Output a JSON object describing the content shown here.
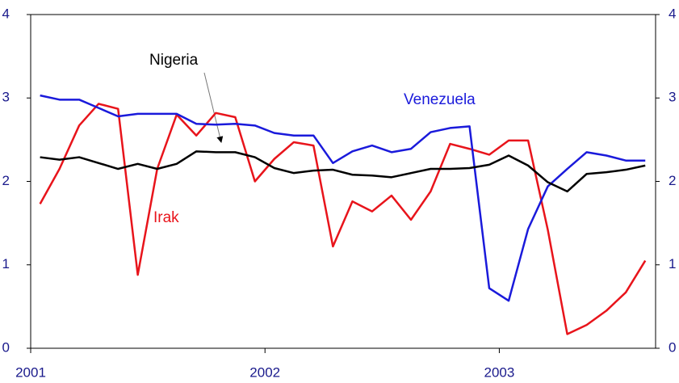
{
  "chart_data": {
    "type": "line",
    "x": [
      2001.04,
      2001.123,
      2001.207,
      2001.29,
      2001.373,
      2001.457,
      2001.54,
      2001.623,
      2001.707,
      2001.79,
      2001.873,
      2001.957,
      2002.04,
      2002.123,
      2002.207,
      2002.29,
      2002.373,
      2002.457,
      2002.54,
      2002.623,
      2002.707,
      2002.79,
      2002.873,
      2002.957,
      2003.04,
      2003.123,
      2003.207,
      2003.29,
      2003.373,
      2003.457,
      2003.54,
      2003.623
    ],
    "series": [
      {
        "name": "Irak",
        "color": "#e8141b",
        "values": [
          1.73,
          2.15,
          2.67,
          2.93,
          2.87,
          0.88,
          2.15,
          2.8,
          2.55,
          2.82,
          2.77,
          2.0,
          2.27,
          2.47,
          2.43,
          1.22,
          1.76,
          1.64,
          1.83,
          1.54,
          1.88,
          2.45,
          2.39,
          2.32,
          2.49,
          2.49,
          1.42,
          0.17,
          0.28,
          0.45,
          0.67,
          1.05
        ]
      },
      {
        "name": "Venezuela",
        "color": "#1a1adb",
        "values": [
          3.03,
          2.98,
          2.98,
          2.88,
          2.78,
          2.81,
          2.81,
          2.81,
          2.69,
          2.68,
          2.69,
          2.67,
          2.58,
          2.55,
          2.55,
          2.22,
          2.36,
          2.43,
          2.35,
          2.39,
          2.59,
          2.64,
          2.66,
          0.72,
          0.57,
          1.43,
          1.94,
          2.15,
          2.35,
          2.31,
          2.25,
          2.25
        ]
      },
      {
        "name": "Nigeria",
        "color": "#000000",
        "values": [
          2.29,
          2.26,
          2.29,
          2.22,
          2.15,
          2.21,
          2.15,
          2.21,
          2.36,
          2.35,
          2.35,
          2.29,
          2.16,
          2.1,
          2.13,
          2.14,
          2.08,
          2.07,
          2.05,
          2.1,
          2.15,
          2.15,
          2.16,
          2.2,
          2.31,
          2.19,
          1.99,
          1.88,
          2.09,
          2.11,
          2.14,
          2.19
        ]
      }
    ],
    "xlim": [
      2001,
      2003.667
    ],
    "xticks": [
      2001,
      2002,
      2003
    ],
    "ylim": [
      0,
      4
    ],
    "yticks": [
      0,
      1,
      2,
      3,
      4
    ],
    "y2lim": [
      0,
      4
    ],
    "y2ticks": [
      0,
      1,
      2,
      3,
      4
    ]
  }
}
